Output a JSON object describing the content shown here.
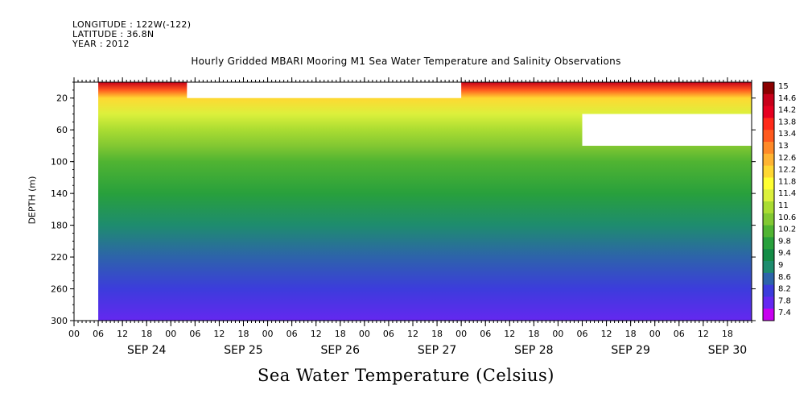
{
  "header": {
    "longitude": "LONGITUDE : 122W(-122)",
    "latitude": "LATITUDE : 36.8N",
    "year": "YEAR : 2012"
  },
  "chart_data": {
    "type": "heatmap",
    "title": "Hourly Gridded MBARI Mooring M1 Sea Water Temperature and Salinity Observations",
    "xlabel": "",
    "ylabel": "DEPTH (m)",
    "colorbar_title": "Sea Water Temperature (Celsius)",
    "x_range_hours": [
      0,
      168
    ],
    "ylim": [
      300,
      0
    ],
    "y_ticks": [
      20,
      60,
      100,
      140,
      180,
      220,
      260,
      300
    ],
    "x_hour_ticks": [
      "00",
      "06",
      "12",
      "18",
      "00",
      "06",
      "12",
      "18",
      "00",
      "06",
      "12",
      "18",
      "00",
      "06",
      "12",
      "18",
      "00",
      "06",
      "12",
      "18",
      "00",
      "06",
      "12",
      "18",
      "00",
      "06",
      "12",
      "18"
    ],
    "day_labels": [
      "SEP 24",
      "SEP 25",
      "SEP 26",
      "SEP 27",
      "SEP 28",
      "SEP 29",
      "SEP 30"
    ],
    "colorbar_ticks": [
      "15",
      "14.6",
      "14.2",
      "13.8",
      "13.4",
      "13",
      "12.6",
      "12.2",
      "11.8",
      "11.4",
      "11",
      "10.6",
      "10.2",
      "9.8",
      "9.4",
      "9",
      "8.6",
      "8.2",
      "7.8",
      "7.4"
    ],
    "colorbar_colors": [
      "#8b0000",
      "#c8001a",
      "#e60020",
      "#ff2a1a",
      "#ff5a1e",
      "#ff8a28",
      "#ffb432",
      "#ffd832",
      "#ffff32",
      "#dcf03c",
      "#aadc32",
      "#82c832",
      "#50b432",
      "#28a03c",
      "#148c46",
      "#1e8c6e",
      "#2d64aa",
      "#3c3cdc",
      "#6428f0",
      "#c800f0"
    ],
    "temperature_profile": {
      "depths": [
        0,
        10,
        20,
        40,
        60,
        80,
        100,
        140,
        180,
        220,
        260,
        300
      ],
      "values": [
        14.6,
        13.6,
        12.2,
        11.6,
        11.0,
        10.6,
        10.2,
        9.8,
        9.2,
        8.8,
        8.4,
        8.0
      ]
    },
    "no_data_regions": [
      {
        "x_start": 0,
        "x_end": 6,
        "depth_top": 0,
        "depth_bottom": 300
      },
      {
        "x_start": 28,
        "x_end": 96,
        "depth_top": 0,
        "depth_bottom": 20
      },
      {
        "x_start": 126,
        "x_end": 168,
        "depth_top": 40,
        "depth_bottom": 80
      }
    ]
  }
}
